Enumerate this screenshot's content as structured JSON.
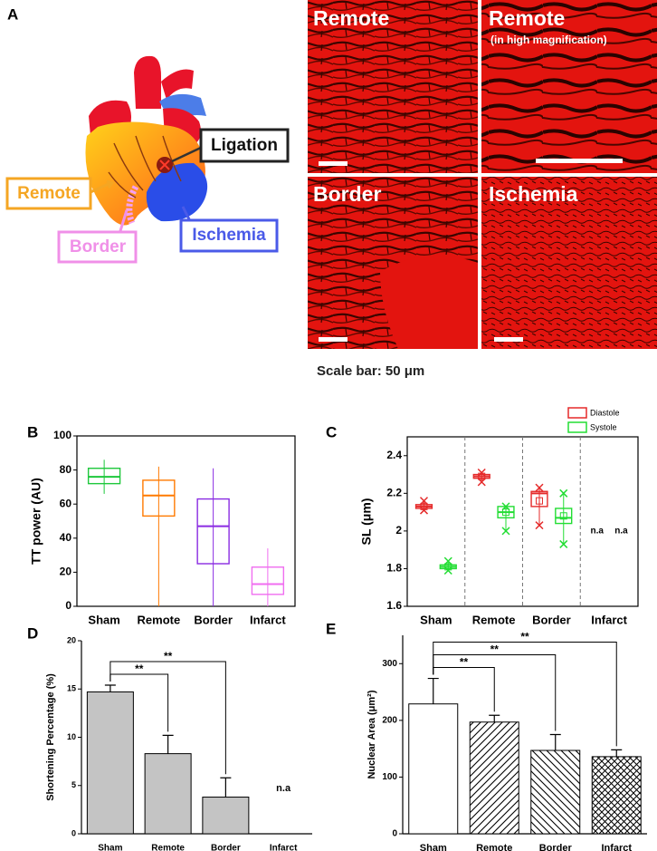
{
  "figure_a": {
    "label": "A",
    "heart_labels": {
      "remote": "Remote",
      "ligation": "Ligation",
      "border": "Border",
      "ischemia": "Ischemia"
    },
    "micrographs": [
      {
        "title": "Remote"
      },
      {
        "title": "Remote",
        "subtitle": "(in high magnification)"
      },
      {
        "title": "Border"
      },
      {
        "title": "Ischemia"
      }
    ],
    "scale_bar": "Scale bar: 50 μm"
  },
  "chart_data": [
    {
      "type": "box",
      "label": "B",
      "ylabel": "TT power (AU)",
      "categories": [
        "Sham",
        "Remote",
        "Border",
        "Infarct"
      ],
      "colors": [
        "#1ec83c",
        "#ff7a00",
        "#8a2be2",
        "#f06ef0"
      ],
      "q1": [
        72,
        53,
        25,
        7
      ],
      "median": [
        76,
        65,
        47,
        13
      ],
      "q3": [
        81,
        74,
        63,
        23
      ],
      "min": [
        66,
        0,
        0,
        0
      ],
      "max": [
        86,
        82,
        81,
        34
      ],
      "ylim": [
        0,
        100
      ],
      "yticks": [
        0,
        20,
        40,
        60,
        80,
        100
      ]
    },
    {
      "type": "grouped_box",
      "label": "C",
      "ylabel": "SL (μm)",
      "categories": [
        "Sham",
        "Remote",
        "Border",
        "Infarct"
      ],
      "series": [
        {
          "name": "Diastole",
          "color": "#e52a2a",
          "q1": [
            2.12,
            2.28,
            2.13,
            null
          ],
          "median": [
            2.13,
            2.29,
            2.2,
            null
          ],
          "q3": [
            2.14,
            2.3,
            2.21,
            null
          ],
          "min": [
            2.11,
            2.26,
            2.03,
            null
          ],
          "max": [
            2.16,
            2.31,
            2.23,
            null
          ],
          "mean": [
            2.13,
            2.29,
            2.16,
            null
          ]
        },
        {
          "name": "Systole",
          "color": "#22dd33",
          "q1": [
            1.8,
            2.07,
            2.04,
            null
          ],
          "median": [
            1.81,
            2.1,
            2.07,
            null
          ],
          "q3": [
            1.82,
            2.13,
            2.12,
            null
          ],
          "min": [
            1.79,
            2.0,
            1.93,
            null
          ],
          "max": [
            1.84,
            2.13,
            2.2,
            null
          ],
          "mean": [
            1.81,
            2.1,
            2.08,
            null
          ]
        }
      ],
      "annotation": "n.a",
      "ylim": [
        1.6,
        2.5
      ],
      "yticks": [
        1.6,
        1.8,
        2,
        2.2,
        2.4
      ]
    },
    {
      "type": "bar",
      "label": "D",
      "ylabel": "Shortening Percentage (%)",
      "categories": [
        "Sham",
        "Remote",
        "Border",
        "Infarct"
      ],
      "values": [
        14.7,
        8.3,
        3.8,
        null
      ],
      "errors": [
        0.7,
        1.9,
        2.0,
        null
      ],
      "color": "#c4c4c4",
      "annotation": "n.a",
      "significance": [
        {
          "pair": [
            0,
            1
          ],
          "label": "**"
        },
        {
          "pair": [
            0,
            2
          ],
          "label": "**"
        }
      ],
      "ylim": [
        0,
        20
      ],
      "yticks": [
        0,
        5,
        10,
        15,
        20
      ]
    },
    {
      "type": "bar",
      "label": "E",
      "ylabel": "Nuclear Area (μm²)",
      "categories": [
        "Sham",
        "Remote",
        "Border",
        "Infarct"
      ],
      "values": [
        229,
        197,
        147,
        136
      ],
      "errors": [
        45,
        12,
        28,
        12
      ],
      "color": "#ffffff",
      "patterns": [
        "none",
        "forward",
        "backward",
        "cross"
      ],
      "significance": [
        {
          "pair": [
            0,
            1
          ],
          "label": "**"
        },
        {
          "pair": [
            0,
            2
          ],
          "label": "**"
        },
        {
          "pair": [
            0,
            3
          ],
          "label": "**"
        }
      ],
      "ylim": [
        0,
        350
      ],
      "yticks": [
        0,
        100,
        200,
        300
      ]
    }
  ]
}
